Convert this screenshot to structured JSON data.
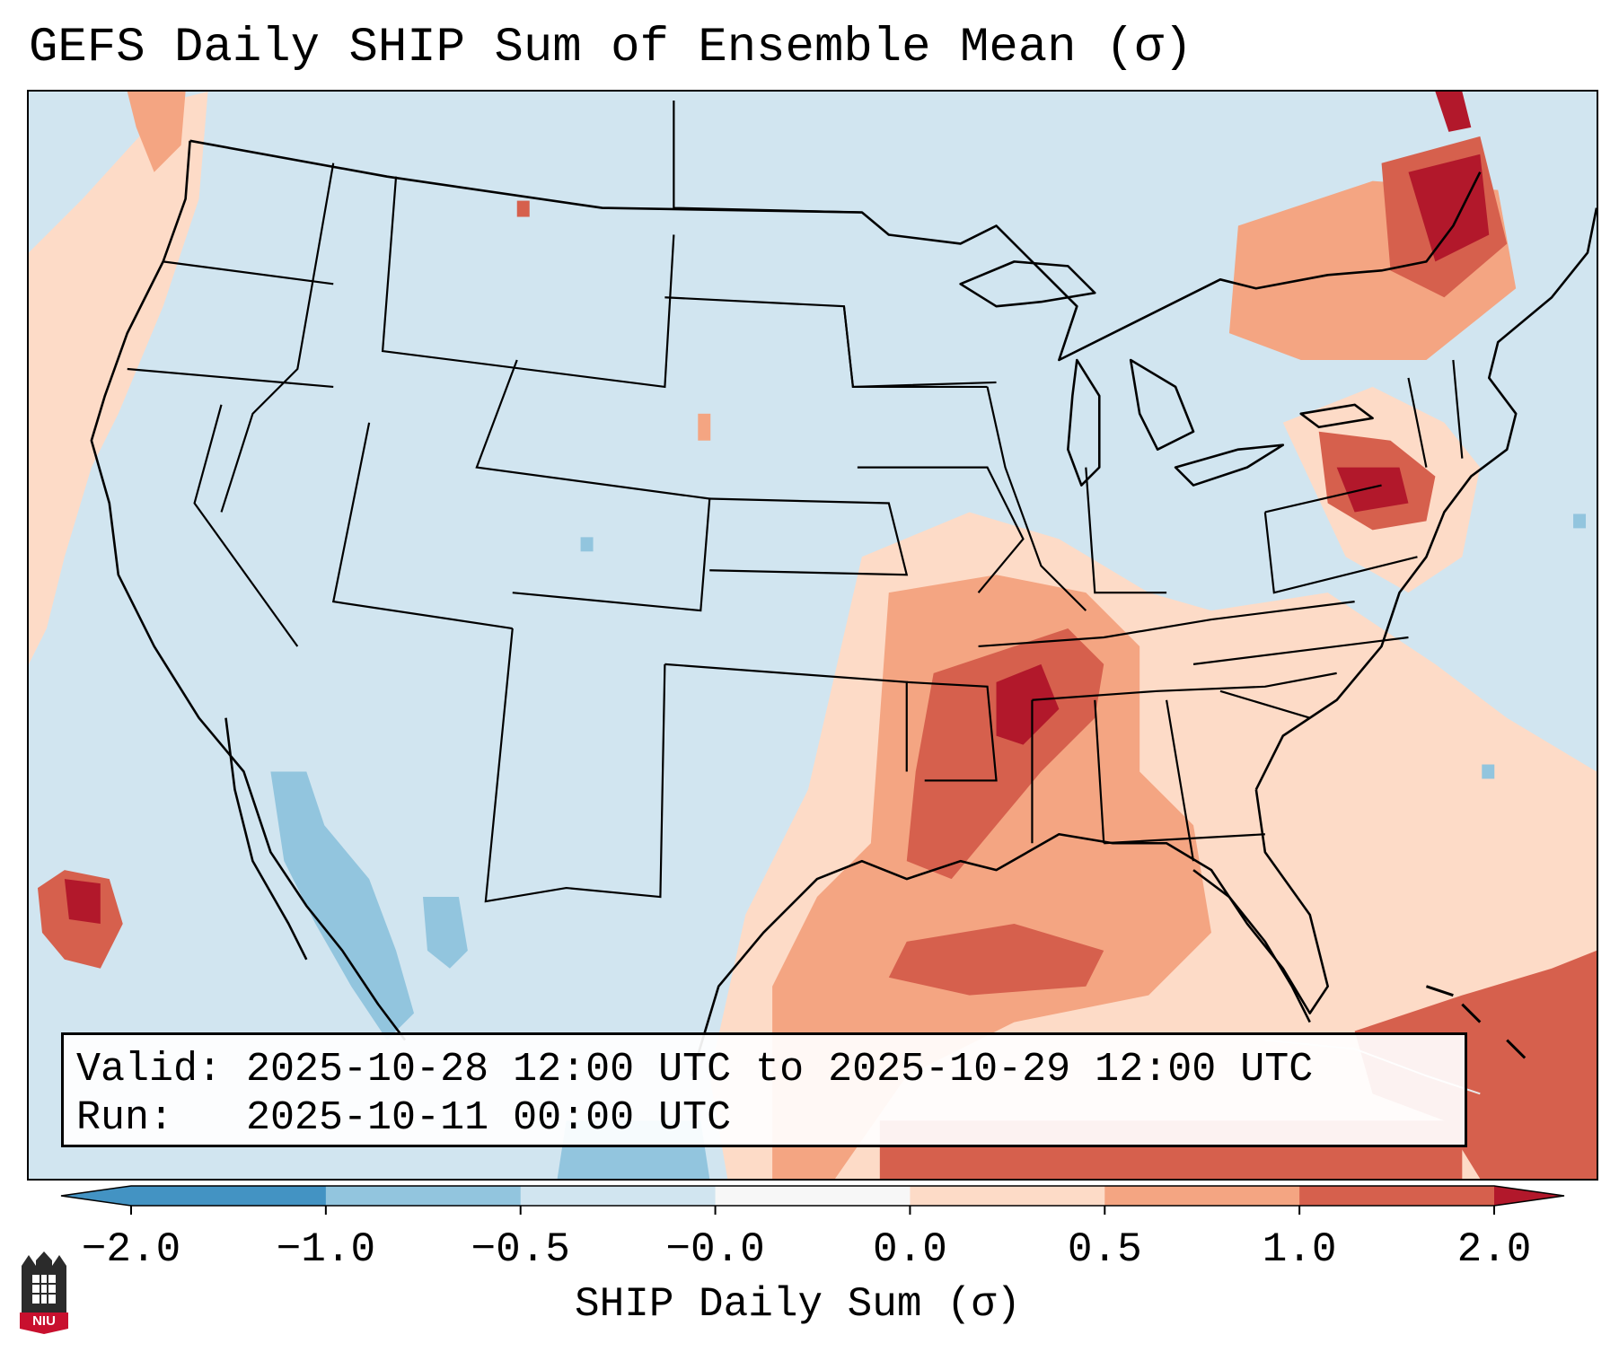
{
  "title": "GEFS Daily SHIP Sum of Ensemble Mean (σ)",
  "info": {
    "valid_line": "Valid: 2025-10-28 12:00 UTC to 2025-10-29 12:00 UTC",
    "run_line": "Run:   2025-10-11 00:00 UTC"
  },
  "colorbar": {
    "label": "SHIP Daily Sum (σ)",
    "ticks": [
      "−2.0",
      "−1.0",
      "−0.5",
      "−0.0",
      "0.0",
      "0.5",
      "1.0",
      "2.0"
    ],
    "colors": [
      "#4393c3",
      "#92c5de",
      "#d1e5f0",
      "#f7f7f7",
      "#fddbc7",
      "#f4a582",
      "#d6604d",
      "#b2182b"
    ],
    "extend": "both"
  },
  "logo": {
    "text": "NIU",
    "icon": "niu-castle-logo"
  },
  "map": {
    "region": "Continental United States",
    "background_color": "#d1e5f0"
  }
}
